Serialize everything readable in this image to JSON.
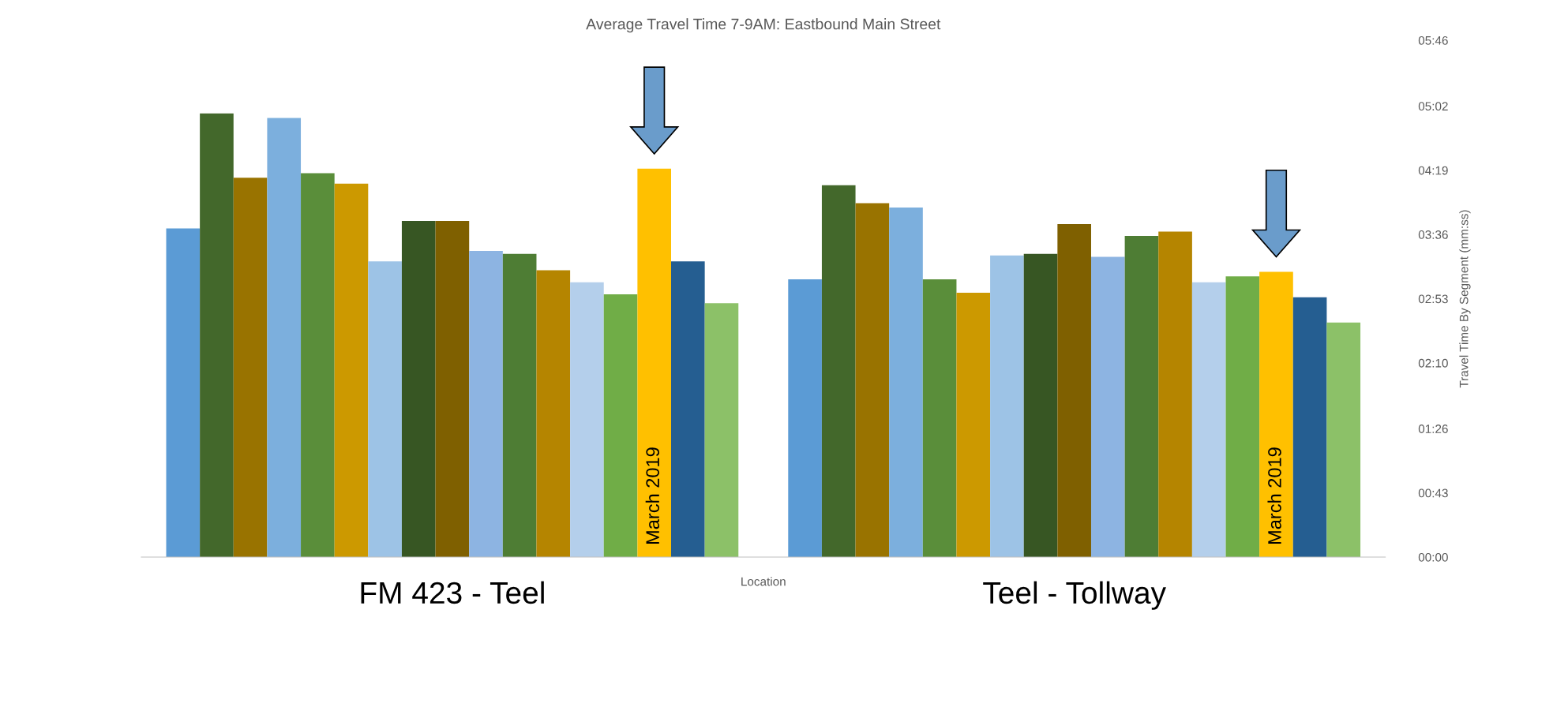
{
  "chart_data": {
    "type": "bar",
    "title": "Average Travel Time 7-9AM: Eastbound Main Street",
    "xlabel": "Location",
    "ylabel": "Travel Time By Segment (mm:ss)",
    "categories": [
      "FM 423 - Teel",
      "Teel - Tollway"
    ],
    "series": [
      {
        "color": "#5b9bd5",
        "values": [
          220,
          186
        ]
      },
      {
        "color": "#43682b",
        "values": [
          297,
          249
        ]
      },
      {
        "color": "#997300",
        "values": [
          254,
          237
        ]
      },
      {
        "color": "#7cafdd",
        "values": [
          294,
          234
        ]
      },
      {
        "color": "#5a8e3a",
        "values": [
          257,
          186
        ]
      },
      {
        "color": "#cc9900",
        "values": [
          250,
          177
        ]
      },
      {
        "color": "#9dc3e6",
        "values": [
          198,
          202
        ]
      },
      {
        "color": "#375623",
        "values": [
          225,
          203
        ]
      },
      {
        "color": "#7f6000",
        "values": [
          225,
          223
        ]
      },
      {
        "color": "#8db4e2",
        "values": [
          205,
          201
        ]
      },
      {
        "color": "#4e7d34",
        "values": [
          203,
          215
        ]
      },
      {
        "color": "#b58500",
        "values": [
          192,
          218
        ]
      },
      {
        "color": "#b4cfeb",
        "values": [
          184,
          184
        ]
      },
      {
        "color": "#70ad47",
        "values": [
          176,
          188
        ]
      },
      {
        "color": "#ffc000",
        "values": [
          260,
          191
        ]
      },
      {
        "color": "#255e91",
        "values": [
          198,
          174
        ]
      },
      {
        "color": "#8cc168",
        "values": [
          170,
          157
        ]
      }
    ],
    "ylim": [
      0,
      346
    ],
    "yticks": [
      {
        "value": 0,
        "label": "00:00"
      },
      {
        "value": 43,
        "label": "00:43"
      },
      {
        "value": 86,
        "label": "01:26"
      },
      {
        "value": 130,
        "label": "02:10"
      },
      {
        "value": 173,
        "label": "02:53"
      },
      {
        "value": 216,
        "label": "03:36"
      },
      {
        "value": 259,
        "label": "04:19"
      },
      {
        "value": 302,
        "label": "05:02"
      },
      {
        "value": 346,
        "label": "05:46"
      }
    ],
    "annotations": [
      "March 2019",
      "March 2019"
    ],
    "grid": false,
    "legend": false
  }
}
